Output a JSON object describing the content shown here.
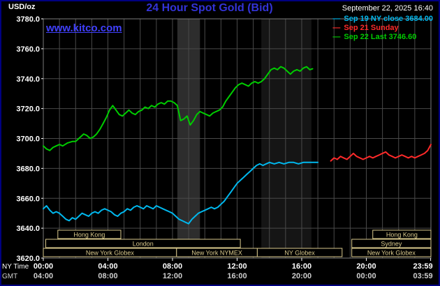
{
  "header": {
    "unit": "USD/oz",
    "title": "24 Hour Spot Gold (Bid)",
    "datetime": "September 22, 2025 16:40"
  },
  "watermark": "www.kitco.com",
  "legend": [
    {
      "label": "Sep 19 NY close 3684.00",
      "color": "#00b8ee"
    },
    {
      "label": "Sep 21 Sunday",
      "color": "#ff2a2a"
    },
    {
      "label": "Sep 22 Last 3746.60",
      "color": "#00cc00"
    }
  ],
  "colors": {
    "grid": "#4a4a4a",
    "border": "#7a7a7a",
    "session": "#d9c98c",
    "tick_text": "#ffffff",
    "gmt_text": "#cfcfcf"
  },
  "axes": {
    "ny_label": "NY Time",
    "gmt_label": "GMT",
    "y_ticks": [
      3780,
      3760,
      3740,
      3720,
      3700,
      3680,
      3660,
      3640,
      3620
    ],
    "x_ticks": [
      {
        "pos": 0,
        "ny": "00:00",
        "gmt": "04:00"
      },
      {
        "pos": 4,
        "ny": "04:00",
        "gmt": "08:00"
      },
      {
        "pos": 8,
        "ny": "08:00",
        "gmt": "12:00"
      },
      {
        "pos": 12,
        "ny": "12:00",
        "gmt": "16:00"
      },
      {
        "pos": 16,
        "ny": "16:00",
        "gmt": "20:00"
      },
      {
        "pos": 20,
        "ny": "20:00",
        "gmt": "00:00"
      },
      {
        "pos": 23.983,
        "ny": "23:59",
        "gmt": "03:59"
      }
    ]
  },
  "sessions": [
    {
      "row": 0,
      "start": 0.9,
      "end": 4.8,
      "label": "Hong Kong"
    },
    {
      "row": 0,
      "start": 20.4,
      "end": 24,
      "label": "Hong Kong"
    },
    {
      "row": 1,
      "start": 0.15,
      "end": 12.2,
      "label": "London"
    },
    {
      "row": 1,
      "start": 19.1,
      "end": 24,
      "label": "Sydney"
    },
    {
      "row": 2,
      "start": 0,
      "end": 8.25,
      "label": "New York Globex"
    },
    {
      "row": 2,
      "start": 8.25,
      "end": 13.25,
      "label": "New York NYMEX"
    },
    {
      "row": 2,
      "start": 13.25,
      "end": 18.5,
      "label": "NY Globex"
    },
    {
      "row": 2,
      "start": 19.1,
      "end": 24,
      "label": "New York Globex"
    }
  ],
  "chart_data": {
    "type": "line",
    "title": "24 Hour Spot Gold (Bid)",
    "xlabel": "NY Time",
    "ylabel": "USD/oz",
    "x_range": [
      0,
      24
    ],
    "y_range": [
      3620,
      3780
    ],
    "grid": true,
    "legend_position": "top-right",
    "shaded_bands": [
      {
        "start": 8.3,
        "end": 9.7,
        "color": "#2d2d2d"
      },
      {
        "start": 13.5,
        "end": 16.6,
        "color": "#151515"
      }
    ],
    "series": [
      {
        "name": "Sep 19 NY close 3684.00",
        "color": "#00b8ee",
        "points": [
          [
            0,
            3653
          ],
          [
            0.2,
            3655
          ],
          [
            0.4,
            3652
          ],
          [
            0.6,
            3650
          ],
          [
            0.8,
            3651
          ],
          [
            1,
            3650
          ],
          [
            1.2,
            3648
          ],
          [
            1.4,
            3646
          ],
          [
            1.6,
            3645
          ],
          [
            1.8,
            3647
          ],
          [
            2,
            3646
          ],
          [
            2.2,
            3648
          ],
          [
            2.4,
            3650
          ],
          [
            2.6,
            3649
          ],
          [
            2.8,
            3648
          ],
          [
            3,
            3650
          ],
          [
            3.2,
            3651
          ],
          [
            3.4,
            3650
          ],
          [
            3.6,
            3652
          ],
          [
            3.8,
            3653
          ],
          [
            4,
            3652
          ],
          [
            4.2,
            3651
          ],
          [
            4.4,
            3649
          ],
          [
            4.6,
            3648
          ],
          [
            4.8,
            3650
          ],
          [
            5,
            3651
          ],
          [
            5.2,
            3653
          ],
          [
            5.4,
            3652
          ],
          [
            5.6,
            3654
          ],
          [
            5.8,
            3655
          ],
          [
            6,
            3654
          ],
          [
            6.2,
            3653
          ],
          [
            6.4,
            3655
          ],
          [
            6.6,
            3654
          ],
          [
            6.8,
            3653
          ],
          [
            7,
            3655
          ],
          [
            7.2,
            3654
          ],
          [
            7.4,
            3653
          ],
          [
            7.6,
            3652
          ],
          [
            7.8,
            3651
          ],
          [
            8,
            3650
          ],
          [
            8.2,
            3648
          ],
          [
            8.4,
            3646
          ],
          [
            8.6,
            3645
          ],
          [
            8.8,
            3644
          ],
          [
            9,
            3643
          ],
          [
            9.2,
            3646
          ],
          [
            9.4,
            3648
          ],
          [
            9.6,
            3650
          ],
          [
            9.8,
            3651
          ],
          [
            10,
            3652
          ],
          [
            10.2,
            3653
          ],
          [
            10.4,
            3654
          ],
          [
            10.6,
            3653
          ],
          [
            10.8,
            3654
          ],
          [
            11,
            3656
          ],
          [
            11.2,
            3658
          ],
          [
            11.4,
            3661
          ],
          [
            11.6,
            3664
          ],
          [
            11.8,
            3667
          ],
          [
            12,
            3670
          ],
          [
            12.2,
            3672
          ],
          [
            12.4,
            3674
          ],
          [
            12.6,
            3676
          ],
          [
            12.8,
            3678
          ],
          [
            13,
            3680
          ],
          [
            13.2,
            3682
          ],
          [
            13.4,
            3683
          ],
          [
            13.6,
            3682
          ],
          [
            13.8,
            3683
          ],
          [
            14,
            3684
          ],
          [
            14.3,
            3683
          ],
          [
            14.6,
            3684
          ],
          [
            14.9,
            3683
          ],
          [
            15.2,
            3684
          ],
          [
            15.5,
            3684
          ],
          [
            15.8,
            3683
          ],
          [
            16.1,
            3684
          ],
          [
            16.4,
            3684
          ],
          [
            16.7,
            3684
          ],
          [
            17,
            3684
          ]
        ]
      },
      {
        "name": "Sep 21 Sunday",
        "color": "#ff2a2a",
        "points": [
          [
            17.8,
            3685
          ],
          [
            18,
            3687
          ],
          [
            18.2,
            3686
          ],
          [
            18.4,
            3688
          ],
          [
            18.6,
            3687
          ],
          [
            18.8,
            3686
          ],
          [
            19,
            3688
          ],
          [
            19.2,
            3690
          ],
          [
            19.4,
            3688
          ],
          [
            19.6,
            3687
          ],
          [
            19.8,
            3686
          ],
          [
            20,
            3687
          ],
          [
            20.2,
            3688
          ],
          [
            20.4,
            3687
          ],
          [
            20.6,
            3688
          ],
          [
            20.8,
            3689
          ],
          [
            21,
            3690
          ],
          [
            21.2,
            3691
          ],
          [
            21.4,
            3689
          ],
          [
            21.6,
            3688
          ],
          [
            21.8,
            3687
          ],
          [
            22,
            3688
          ],
          [
            22.2,
            3689
          ],
          [
            22.4,
            3688
          ],
          [
            22.6,
            3687
          ],
          [
            22.8,
            3688
          ],
          [
            23,
            3687
          ],
          [
            23.2,
            3688
          ],
          [
            23.4,
            3689
          ],
          [
            23.6,
            3690
          ],
          [
            23.8,
            3692
          ],
          [
            24,
            3696
          ]
        ]
      },
      {
        "name": "Sep 22 Last 3746.60",
        "color": "#00cc00",
        "points": [
          [
            0,
            3695
          ],
          [
            0.2,
            3693
          ],
          [
            0.4,
            3692
          ],
          [
            0.6,
            3694
          ],
          [
            0.8,
            3695
          ],
          [
            1,
            3696
          ],
          [
            1.2,
            3695
          ],
          [
            1.5,
            3697
          ],
          [
            1.8,
            3698
          ],
          [
            2,
            3698
          ],
          [
            2.2,
            3700
          ],
          [
            2.5,
            3703
          ],
          [
            2.7,
            3702
          ],
          [
            2.9,
            3700
          ],
          [
            3.1,
            3701
          ],
          [
            3.3,
            3703
          ],
          [
            3.5,
            3706
          ],
          [
            3.7,
            3710
          ],
          [
            3.9,
            3714
          ],
          [
            4.1,
            3719
          ],
          [
            4.3,
            3722
          ],
          [
            4.5,
            3719
          ],
          [
            4.7,
            3716
          ],
          [
            4.9,
            3715
          ],
          [
            5.1,
            3717
          ],
          [
            5.3,
            3719
          ],
          [
            5.5,
            3717
          ],
          [
            5.7,
            3716
          ],
          [
            5.9,
            3718
          ],
          [
            6.1,
            3719
          ],
          [
            6.3,
            3721
          ],
          [
            6.5,
            3720
          ],
          [
            6.7,
            3722
          ],
          [
            6.9,
            3721
          ],
          [
            7.1,
            3723
          ],
          [
            7.3,
            3724
          ],
          [
            7.5,
            3723
          ],
          [
            7.7,
            3725
          ],
          [
            7.9,
            3725
          ],
          [
            8.1,
            3724
          ],
          [
            8.3,
            3722
          ],
          [
            8.5,
            3712
          ],
          [
            8.7,
            3713
          ],
          [
            8.9,
            3715
          ],
          [
            9.1,
            3709
          ],
          [
            9.3,
            3712
          ],
          [
            9.5,
            3716
          ],
          [
            9.7,
            3718
          ],
          [
            9.9,
            3717
          ],
          [
            10.1,
            3716
          ],
          [
            10.3,
            3715
          ],
          [
            10.5,
            3717
          ],
          [
            10.7,
            3718
          ],
          [
            10.9,
            3719
          ],
          [
            11.1,
            3721
          ],
          [
            11.3,
            3725
          ],
          [
            11.5,
            3728
          ],
          [
            11.7,
            3731
          ],
          [
            11.9,
            3734
          ],
          [
            12.1,
            3736
          ],
          [
            12.3,
            3737
          ],
          [
            12.5,
            3736
          ],
          [
            12.7,
            3735
          ],
          [
            12.9,
            3737
          ],
          [
            13.1,
            3738
          ],
          [
            13.3,
            3737
          ],
          [
            13.5,
            3738
          ],
          [
            13.7,
            3740
          ],
          [
            13.9,
            3743
          ],
          [
            14.1,
            3746
          ],
          [
            14.3,
            3747
          ],
          [
            14.5,
            3746
          ],
          [
            14.7,
            3748
          ],
          [
            14.9,
            3747
          ],
          [
            15.1,
            3745
          ],
          [
            15.3,
            3743
          ],
          [
            15.5,
            3745
          ],
          [
            15.7,
            3746
          ],
          [
            15.9,
            3745
          ],
          [
            16.1,
            3747
          ],
          [
            16.3,
            3748
          ],
          [
            16.5,
            3746
          ],
          [
            16.67,
            3746.6
          ]
        ]
      }
    ]
  }
}
